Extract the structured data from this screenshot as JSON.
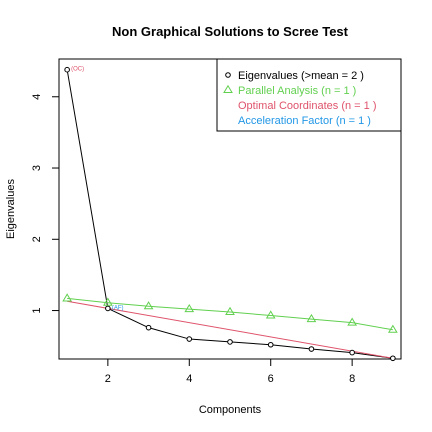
{
  "chart_data": {
    "type": "line",
    "title": "Non Graphical Solutions to Scree Test",
    "xlabel": "Components",
    "ylabel": "Eigenvalues",
    "xlim": [
      0.8,
      9.2
    ],
    "ylim": [
      0.32,
      4.53
    ],
    "x_ticks": [
      2,
      4,
      6,
      8
    ],
    "y_ticks": [
      1,
      2,
      3,
      4
    ],
    "grid": false,
    "legend_position": "top-right",
    "series": [
      {
        "name": "Eigenvalues (>mean = 2 )",
        "color": "#000000",
        "marker": "circle",
        "x": [
          1,
          2,
          3,
          4,
          5,
          6,
          7,
          8,
          9
        ],
        "y": [
          4.38,
          1.03,
          0.76,
          0.6,
          0.56,
          0.52,
          0.46,
          0.41,
          0.33
        ]
      },
      {
        "name": "Parallel Analysis (n = 1 )",
        "color": "#61D04F",
        "marker": "triangle",
        "x": [
          1,
          2,
          3,
          4,
          5,
          6,
          7,
          8,
          9
        ],
        "y": [
          1.17,
          1.11,
          1.06,
          1.02,
          0.98,
          0.93,
          0.88,
          0.83,
          0.73
        ]
      },
      {
        "name": "Optimal Coordinates (n = 1 )",
        "color": "#DF536B",
        "marker": "none",
        "x": [
          1,
          9
        ],
        "y": [
          1.13,
          0.33
        ]
      },
      {
        "name": "Acceleration Factor (n = 1 )",
        "color": "#2297E6",
        "marker": "none",
        "x": [],
        "y": []
      }
    ],
    "annotations": [
      {
        "text": "(OC)",
        "x": 1,
        "y": 4.38,
        "color": "#DF536B"
      },
      {
        "text": "(AF)",
        "x": 2,
        "y": 1.03,
        "color": "#2297E6"
      }
    ]
  }
}
